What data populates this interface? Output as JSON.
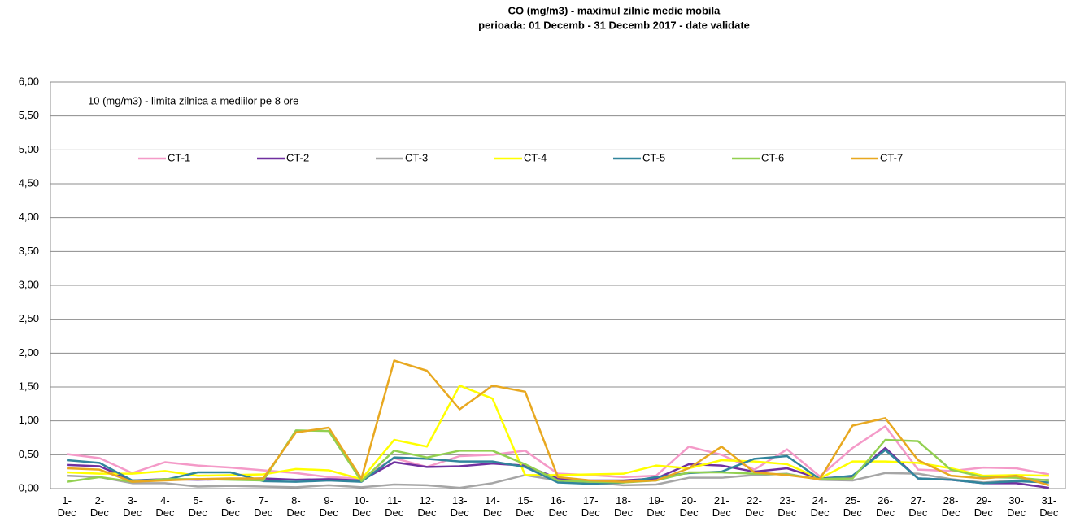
{
  "chart_data": {
    "type": "line",
    "title": "CO (mg/m3) - maximul zilnic medie mobila",
    "subtitle": "perioada: 01 Decemb - 31 Decemb 2017 - date validate",
    "annotation": "10 (mg/m3) - limita zilnica a mediilor pe 8 ore",
    "categories": [
      "1-Dec",
      "2-Dec",
      "3-Dec",
      "4-Dec",
      "5-Dec",
      "6-Dec",
      "7-Dec",
      "8-Dec",
      "9-Dec",
      "10-Dec",
      "11-Dec",
      "12-Dec",
      "13-Dec",
      "14-Dec",
      "15-Dec",
      "16-Dec",
      "17-Dec",
      "18-Dec",
      "19-Dec",
      "20-Dec",
      "21-Dec",
      "22-Dec",
      "23-Dec",
      "24-Dec",
      "25-Dec",
      "26-Dec",
      "27-Dec",
      "28-Dec",
      "29-Dec",
      "30-Dec",
      "31-Dec"
    ],
    "series": [
      {
        "name": "CT-1",
        "color": "#f49ac8",
        "values": [
          0.51,
          0.45,
          0.23,
          0.39,
          0.34,
          0.31,
          0.27,
          0.23,
          0.17,
          0.15,
          0.45,
          0.32,
          0.48,
          0.5,
          0.56,
          0.22,
          0.2,
          0.17,
          0.19,
          0.62,
          0.5,
          0.28,
          0.58,
          0.18,
          0.6,
          0.92,
          0.28,
          0.26,
          0.31,
          0.3,
          0.21
        ]
      },
      {
        "name": "CT-2",
        "color": "#7030a0",
        "values": [
          0.35,
          0.33,
          0.12,
          0.14,
          0.13,
          0.14,
          0.15,
          0.13,
          0.14,
          0.12,
          0.39,
          0.32,
          0.33,
          0.37,
          0.34,
          0.15,
          0.12,
          0.12,
          0.15,
          0.36,
          0.34,
          0.25,
          0.3,
          0.15,
          0.18,
          0.6,
          0.15,
          0.13,
          0.08,
          0.08,
          0.01
        ]
      },
      {
        "name": "CT-3",
        "color": "#a6a6a6",
        "values": [
          0.19,
          0.17,
          0.08,
          0.08,
          0.03,
          0.04,
          0.03,
          0.02,
          0.05,
          0.02,
          0.06,
          0.05,
          0.01,
          0.08,
          0.2,
          0.12,
          0.09,
          0.05,
          0.06,
          0.16,
          0.16,
          0.2,
          0.22,
          0.13,
          0.12,
          0.23,
          0.22,
          0.14,
          0.09,
          0.12,
          0.13
        ]
      },
      {
        "name": "CT-4",
        "color": "#ffff00",
        "values": [
          0.24,
          0.22,
          0.22,
          0.26,
          0.19,
          0.2,
          0.21,
          0.29,
          0.27,
          0.14,
          0.72,
          0.62,
          1.52,
          1.33,
          0.2,
          0.2,
          0.21,
          0.22,
          0.34,
          0.3,
          0.42,
          0.4,
          0.36,
          0.15,
          0.4,
          0.4,
          0.38,
          0.3,
          0.19,
          0.2,
          0.19
        ]
      },
      {
        "name": "CT-5",
        "color": "#31859c",
        "values": [
          0.42,
          0.38,
          0.12,
          0.13,
          0.24,
          0.24,
          0.11,
          0.1,
          0.12,
          0.1,
          0.46,
          0.44,
          0.4,
          0.4,
          0.32,
          0.09,
          0.07,
          0.09,
          0.17,
          0.23,
          0.25,
          0.44,
          0.48,
          0.14,
          0.19,
          0.57,
          0.15,
          0.13,
          0.08,
          0.11,
          0.09
        ]
      },
      {
        "name": "CT-6",
        "color": "#92d050",
        "values": [
          0.1,
          0.17,
          0.1,
          0.14,
          0.14,
          0.13,
          0.12,
          0.86,
          0.85,
          0.11,
          0.56,
          0.46,
          0.56,
          0.56,
          0.36,
          0.12,
          0.1,
          0.09,
          0.12,
          0.24,
          0.24,
          0.22,
          0.21,
          0.14,
          0.15,
          0.72,
          0.7,
          0.28,
          0.17,
          0.16,
          0.12
        ]
      },
      {
        "name": "CT-7",
        "color": "#e8a820",
        "values": [
          0.3,
          0.28,
          0.1,
          0.12,
          0.14,
          0.15,
          0.15,
          0.83,
          0.9,
          0.15,
          1.89,
          1.74,
          1.17,
          1.52,
          1.43,
          0.17,
          0.12,
          0.1,
          0.12,
          0.3,
          0.62,
          0.24,
          0.2,
          0.14,
          0.93,
          1.04,
          0.42,
          0.19,
          0.15,
          0.19,
          0.05
        ]
      }
    ],
    "ylim": [
      0,
      6
    ],
    "yticks": [
      {
        "value": 0,
        "label": "0,00"
      },
      {
        "value": 0.5,
        "label": "0,50"
      },
      {
        "value": 1,
        "label": "1,00"
      },
      {
        "value": 1.5,
        "label": "1,50"
      },
      {
        "value": 2,
        "label": "2,00"
      },
      {
        "value": 2.5,
        "label": "2,50"
      },
      {
        "value": 3,
        "label": "3,00"
      },
      {
        "value": 3.5,
        "label": "3,50"
      },
      {
        "value": 4,
        "label": "4,00"
      },
      {
        "value": 4.5,
        "label": "4,50"
      },
      {
        "value": 5,
        "label": "5,00"
      },
      {
        "value": 5.5,
        "label": "5,50"
      },
      {
        "value": 6,
        "label": "6,00"
      }
    ],
    "grid": true
  }
}
